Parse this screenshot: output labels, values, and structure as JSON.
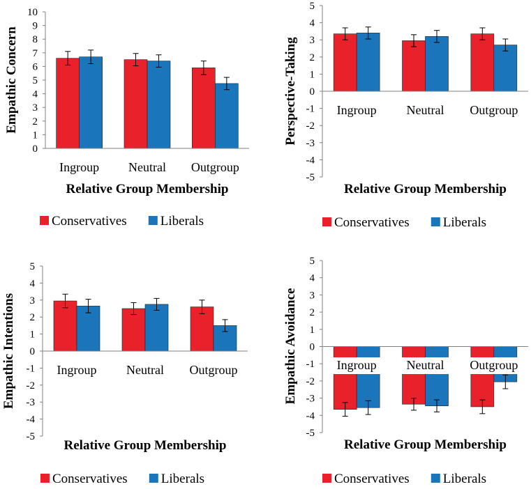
{
  "chart_data": [
    {
      "type": "bar",
      "ylabel": "Empathic Concern",
      "xlabel": "Relative Group Membership",
      "categories": [
        "Ingroup",
        "Neutral",
        "Outgroup"
      ],
      "ylim": [
        0,
        10
      ],
      "yticks": [
        "0",
        "1",
        "2",
        "3",
        "4",
        "5",
        "6",
        "7",
        "8",
        "9",
        "10"
      ],
      "series": [
        {
          "name": "Conservatives",
          "values": [
            6.6,
            6.5,
            5.9
          ],
          "errors": [
            0.5,
            0.45,
            0.5
          ]
        },
        {
          "name": "Liberals",
          "values": [
            6.7,
            6.4,
            4.75
          ],
          "errors": [
            0.5,
            0.45,
            0.45
          ]
        }
      ],
      "legend": [
        "Conservatives",
        "Liberals"
      ]
    },
    {
      "type": "bar",
      "ylabel": "Perspective-Taking",
      "xlabel": "Relative Group Membership",
      "categories": [
        "Ingroup",
        "Neutral",
        "Outgroup"
      ],
      "ylim": [
        -5,
        5
      ],
      "yticks": [
        "-5",
        "-4",
        "-3",
        "-2",
        "-1",
        "0",
        "1",
        "2",
        "3",
        "4",
        "5"
      ],
      "series": [
        {
          "name": "Conservatives",
          "values": [
            3.35,
            2.95,
            3.35
          ],
          "errors": [
            0.35,
            0.35,
            0.35
          ]
        },
        {
          "name": "Liberals",
          "values": [
            3.4,
            3.2,
            2.7
          ],
          "errors": [
            0.35,
            0.35,
            0.35
          ]
        }
      ],
      "legend": [
        "Conservatives",
        "Liberals"
      ]
    },
    {
      "type": "bar",
      "ylabel": "Empathic Intentions",
      "xlabel": "Relative Group Membership",
      "categories": [
        "Ingroup",
        "Neutral",
        "Outgroup"
      ],
      "ylim": [
        -5,
        5
      ],
      "yticks": [
        "-5",
        "-4",
        "-3",
        "-2",
        "-1",
        "0",
        "1",
        "2",
        "3",
        "4",
        "5"
      ],
      "series": [
        {
          "name": "Conservatives",
          "values": [
            2.95,
            2.5,
            2.6
          ],
          "errors": [
            0.4,
            0.35,
            0.4
          ]
        },
        {
          "name": "Liberals",
          "values": [
            2.65,
            2.75,
            1.5
          ],
          "errors": [
            0.4,
            0.35,
            0.35
          ]
        }
      ],
      "legend": [
        "Conservatives",
        "Liberals"
      ]
    },
    {
      "type": "bar",
      "ylabel": "Empathic Avoidance",
      "xlabel": "Relative Group Membership",
      "categories": [
        "Ingroup",
        "Neutral",
        "Outgroup"
      ],
      "ylim": [
        -5,
        5
      ],
      "yticks": [
        "-5",
        "-4",
        "-3",
        "-2",
        "-1",
        "0",
        "1",
        "2",
        "3",
        "4",
        "5"
      ],
      "series": [
        {
          "name": "Conservatives",
          "values": [
            -3.65,
            -3.35,
            -3.5
          ],
          "errors": [
            0.4,
            0.35,
            0.4
          ]
        },
        {
          "name": "Liberals",
          "values": [
            -3.55,
            -3.45,
            -2.05
          ],
          "errors": [
            0.4,
            0.35,
            0.4
          ]
        }
      ],
      "legend": [
        "Conservatives",
        "Liberals"
      ]
    }
  ],
  "colors": {
    "Conservatives": "#e8212a",
    "Liberals": "#1b75bb",
    "axis": "#808080"
  }
}
